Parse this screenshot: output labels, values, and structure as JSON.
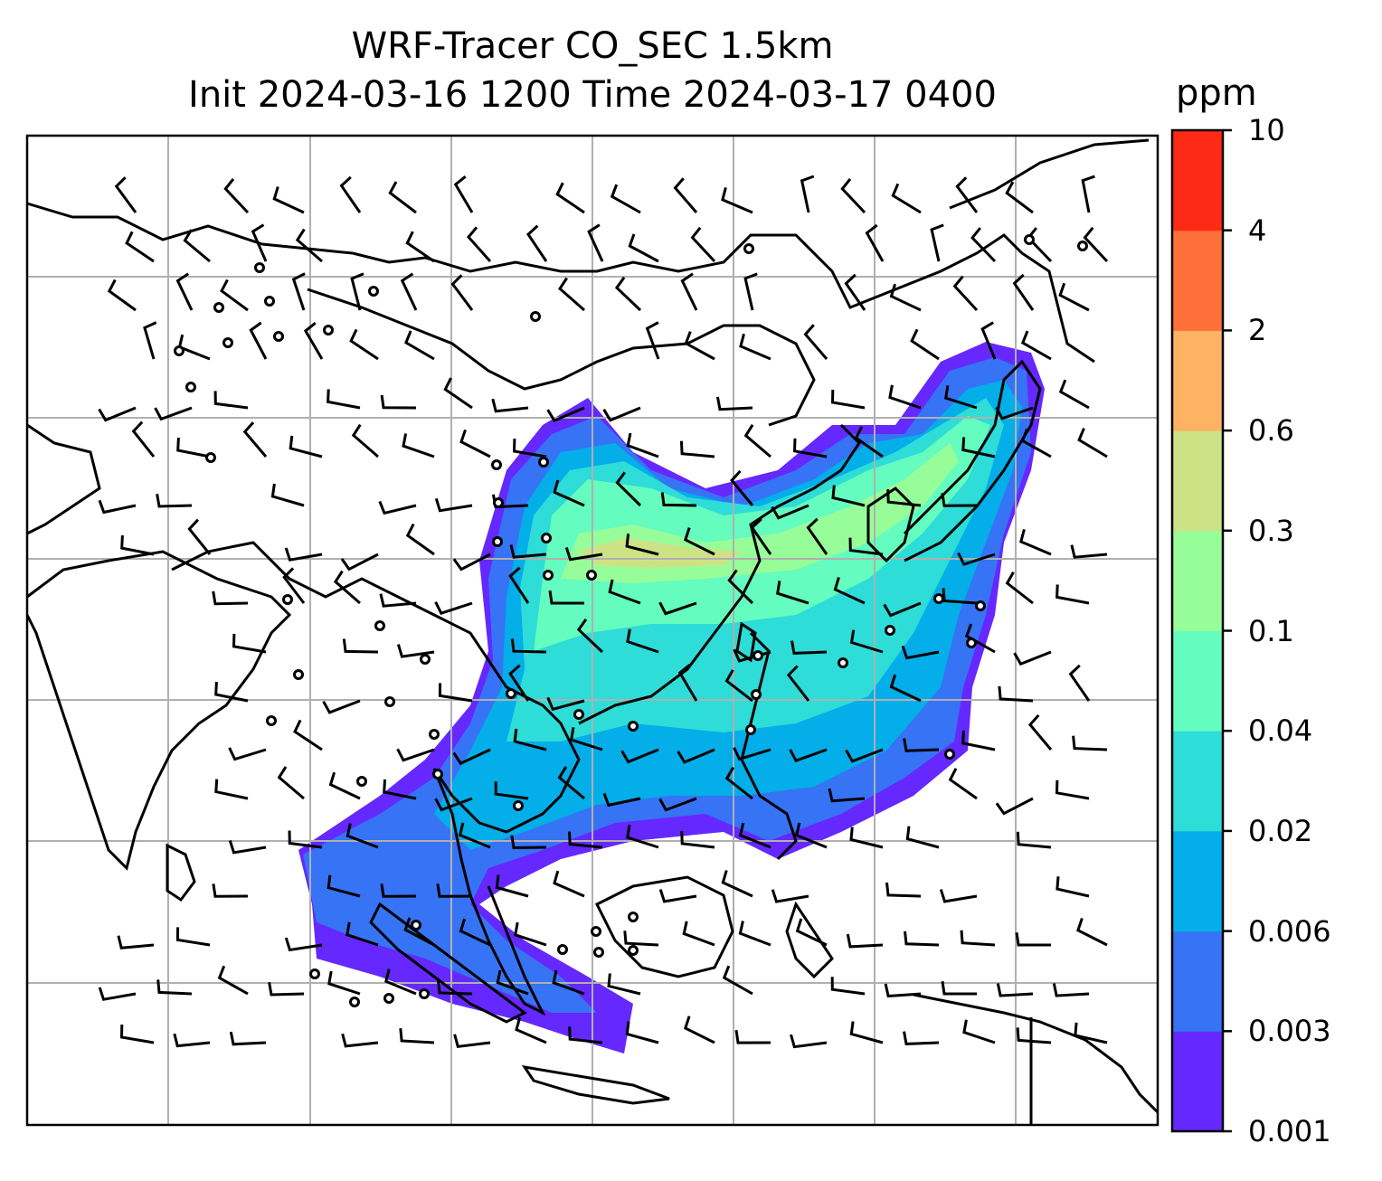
{
  "title_line1": "WRF-Tracer CO_SEC 1.5km",
  "title_line2": "Init 2024-03-16 1200 Time 2024-03-17 0400",
  "colorbar": {
    "unit": "ppm",
    "ticks": [
      "0.001",
      "0.003",
      "0.006",
      "0.02",
      "0.04",
      "0.1",
      "0.3",
      "0.6",
      "2",
      "4",
      "10"
    ],
    "colors": [
      "#6528ff",
      "#3673f5",
      "#03aee9",
      "#2edcd8",
      "#64fcbf",
      "#97fd99",
      "#cde285",
      "#feb264",
      "#ff6f3a",
      "#ff2a16"
    ]
  },
  "map": {
    "gridlines": true,
    "coastline_color": "#000000",
    "wind_barb_color": "#000000",
    "field_name": "CO_SEC"
  },
  "chart_data": {
    "type": "heatmap",
    "variable": "CO_SEC",
    "unit": "ppm",
    "levels": [
      0.001,
      0.003,
      0.006,
      0.02,
      0.04,
      0.1,
      0.3,
      0.6,
      2,
      4,
      10
    ]
  }
}
